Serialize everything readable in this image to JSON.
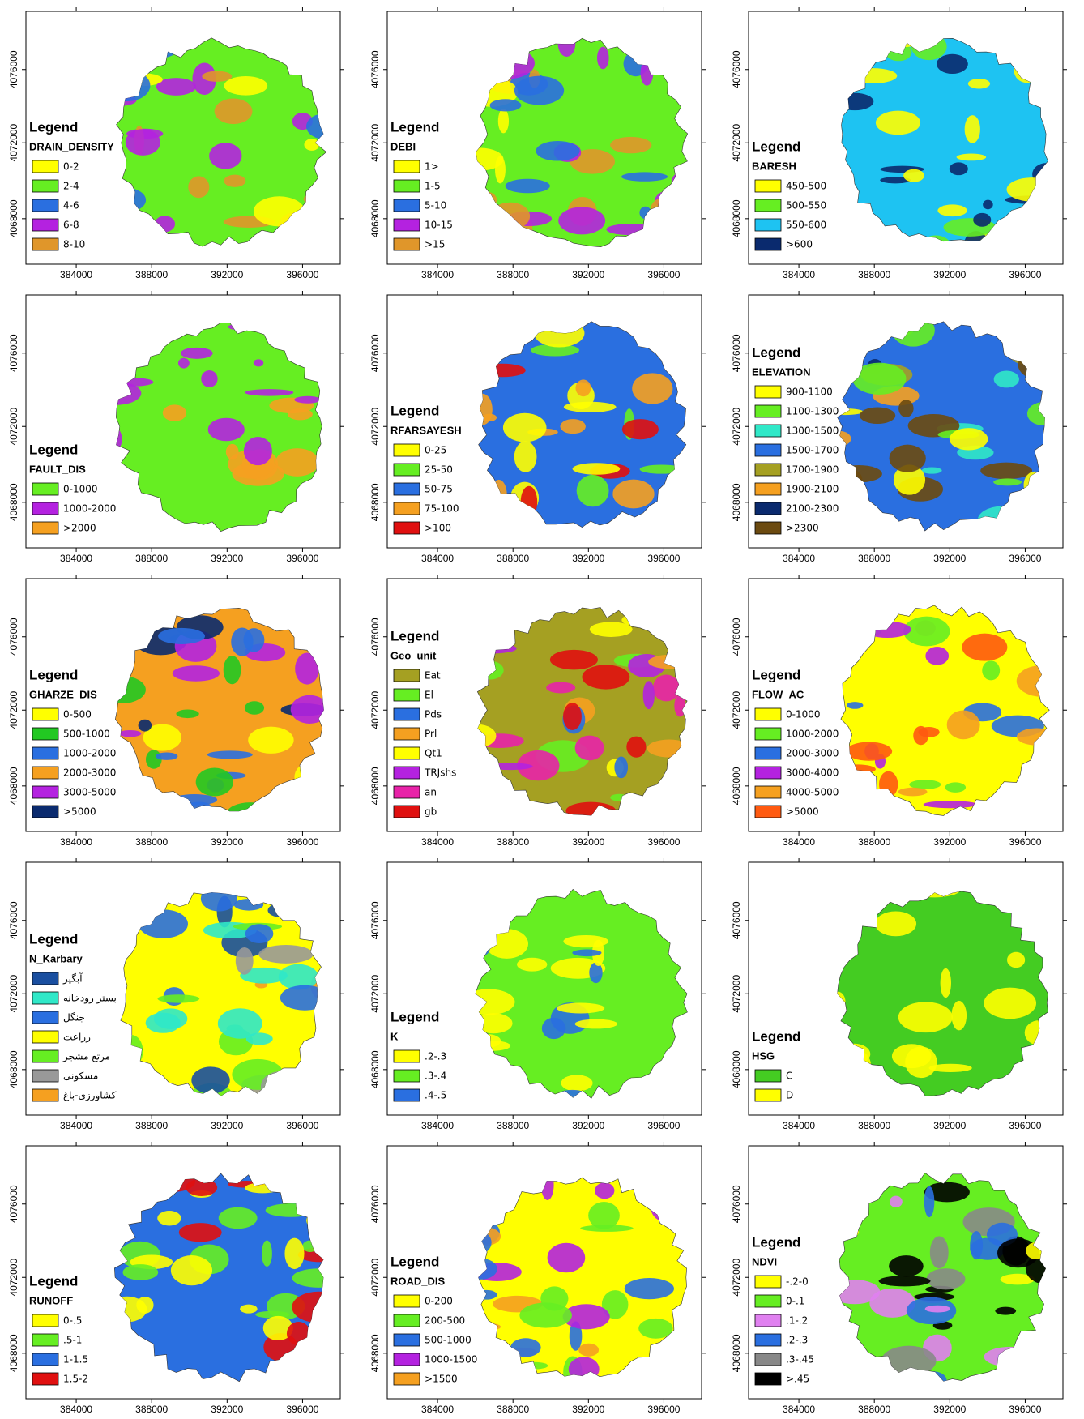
{
  "axes": {
    "x_ticks": [
      "384000",
      "388000",
      "392000",
      "396000"
    ],
    "y_ticks": [
      "4076000",
      "4072000",
      "4068000"
    ]
  },
  "panels": [
    {
      "legend_title": "Legend",
      "layer": "DRAIN_DENSITY",
      "items": [
        {
          "label": "0-2",
          "color": "#ffff00"
        },
        {
          "label": "2-4",
          "color": "#66ee22"
        },
        {
          "label": "4-6",
          "color": "#2a6fe0"
        },
        {
          "label": "6-8",
          "color": "#b422e0"
        },
        {
          "label": "8-10",
          "color": "#e0962a"
        }
      ]
    },
    {
      "legend_title": "Legend",
      "layer": "DEBI",
      "items": [
        {
          "label": "1>",
          "color": "#ffff00"
        },
        {
          "label": "1-5",
          "color": "#66ee22"
        },
        {
          "label": "5-10",
          "color": "#2a6fe0"
        },
        {
          "label": "10-15",
          "color": "#b422e0"
        },
        {
          "label": ">15",
          "color": "#e0962a"
        }
      ]
    },
    {
      "legend_title": "Legend",
      "layer": "BARESH",
      "items": [
        {
          "label": "450-500",
          "color": "#ffff00"
        },
        {
          "label": "500-550",
          "color": "#66ee22"
        },
        {
          "label": "550-600",
          "color": "#1ec3f2"
        },
        {
          "label": ">600",
          "color": "#0a2a6e"
        }
      ]
    },
    {
      "legend_title": "Legend",
      "layer": "FAULT_DIS",
      "items": [
        {
          "label": "0-1000",
          "color": "#66ee22"
        },
        {
          "label": "1000-2000",
          "color": "#b422e0"
        },
        {
          "label": ">2000",
          "color": "#f5a020"
        }
      ]
    },
    {
      "legend_title": "Legend",
      "layer": "RFARSAYESH",
      "items": [
        {
          "label": "0-25",
          "color": "#ffff00"
        },
        {
          "label": "25-50",
          "color": "#66ee22"
        },
        {
          "label": "50-75",
          "color": "#2a6fe0"
        },
        {
          "label": "75-100",
          "color": "#f5a020"
        },
        {
          "label": ">100",
          "color": "#e01010"
        }
      ]
    },
    {
      "legend_title": "Legend",
      "layer": "ELEVATION",
      "items": [
        {
          "label": "900-1100",
          "color": "#ffff00"
        },
        {
          "label": "1100-1300",
          "color": "#66ee22"
        },
        {
          "label": "1300-1500",
          "color": "#30e8c8"
        },
        {
          "label": "1500-1700",
          "color": "#2a6fe0"
        },
        {
          "label": "1700-1900",
          "color": "#a5a022"
        },
        {
          "label": "1900-2100",
          "color": "#f5a020"
        },
        {
          "label": "2100-2300",
          "color": "#0a2a6e"
        },
        {
          "label": ">2300",
          "color": "#6b4a10"
        }
      ]
    },
    {
      "legend_title": "Legend",
      "layer": "GHARZE_DIS",
      "items": [
        {
          "label": "0-500",
          "color": "#ffff00"
        },
        {
          "label": "500-1000",
          "color": "#22c822"
        },
        {
          "label": "1000-2000",
          "color": "#2a6fe0"
        },
        {
          "label": "2000-3000",
          "color": "#f5a020"
        },
        {
          "label": "3000-5000",
          "color": "#b422e0"
        },
        {
          "label": ">5000",
          "color": "#0a2a6e"
        }
      ]
    },
    {
      "legend_title": "Legend",
      "layer": "Geo_unit",
      "items": [
        {
          "label": "Eat",
          "color": "#a5a022"
        },
        {
          "label": "El",
          "color": "#66ee22"
        },
        {
          "label": "Pds",
          "color": "#2a6fe0"
        },
        {
          "label": "Prl",
          "color": "#f5a020"
        },
        {
          "label": "Qt1",
          "color": "#ffff00"
        },
        {
          "label": "TRJshs",
          "color": "#b422e0"
        },
        {
          "label": "an",
          "color": "#e822a8"
        },
        {
          "label": "gb",
          "color": "#e01010"
        }
      ]
    },
    {
      "legend_title": "Legend",
      "layer": "FLOW_AC",
      "items": [
        {
          "label": "0-1000",
          "color": "#ffff00"
        },
        {
          "label": "1000-2000",
          "color": "#66ee22"
        },
        {
          "label": "2000-3000",
          "color": "#2a6fe0"
        },
        {
          "label": "3000-4000",
          "color": "#b422e0"
        },
        {
          "label": "4000-5000",
          "color": "#f5a020"
        },
        {
          "label": ">5000",
          "color": "#ff5a10"
        }
      ]
    },
    {
      "legend_title": "Legend",
      "layer": "N_Karbary",
      "items": [
        {
          "label": "آبگیر",
          "color": "#1a4fa0"
        },
        {
          "label": "بستر رودخانه",
          "color": "#30e8c8"
        },
        {
          "label": "جنگل",
          "color": "#2a6fe0"
        },
        {
          "label": "زراعت",
          "color": "#ffff00"
        },
        {
          "label": "مرتع مشجر",
          "color": "#66ee22"
        },
        {
          "label": "مسکونی",
          "color": "#999999"
        },
        {
          "label": "کشاورزی-باغ",
          "color": "#f5a020"
        }
      ]
    },
    {
      "legend_title": "Legend",
      "layer": "K",
      "items": [
        {
          "label": ".2-.3",
          "color": "#ffff00"
        },
        {
          "label": ".3-.4",
          "color": "#66ee22"
        },
        {
          "label": ".4-.5",
          "color": "#2a6fe0"
        }
      ]
    },
    {
      "legend_title": "Legend",
      "layer": "HSG",
      "items": [
        {
          "label": "C",
          "color": "#44cc22"
        },
        {
          "label": "D",
          "color": "#ffff00"
        }
      ]
    },
    {
      "legend_title": "Legend",
      "layer": "RUNOFF",
      "items": [
        {
          "label": "0-.5",
          "color": "#ffff00"
        },
        {
          "label": ".5-1",
          "color": "#66ee22"
        },
        {
          "label": "1-1.5",
          "color": "#2a6fe0"
        },
        {
          "label": "1.5-2",
          "color": "#e01010"
        }
      ]
    },
    {
      "legend_title": "Legend",
      "layer": "ROAD_DIS",
      "items": [
        {
          "label": "0-200",
          "color": "#ffff00"
        },
        {
          "label": "200-500",
          "color": "#66ee22"
        },
        {
          "label": "500-1000",
          "color": "#2a6fe0"
        },
        {
          "label": "1000-1500",
          "color": "#b422e0"
        },
        {
          "label": ">1500",
          "color": "#f5a020"
        }
      ]
    },
    {
      "legend_title": "Legend",
      "layer": "NDVI",
      "items": [
        {
          "label": "-.2-0",
          "color": "#ffff00"
        },
        {
          "label": "0-.1",
          "color": "#66ee22"
        },
        {
          "label": ".1-.2",
          "color": "#e080f0"
        },
        {
          "label": ".2-.3",
          "color": "#2a6fe0"
        },
        {
          "label": ".3-.45",
          "color": "#888888"
        },
        {
          "label": ">.45",
          "color": "#000000"
        }
      ]
    }
  ]
}
